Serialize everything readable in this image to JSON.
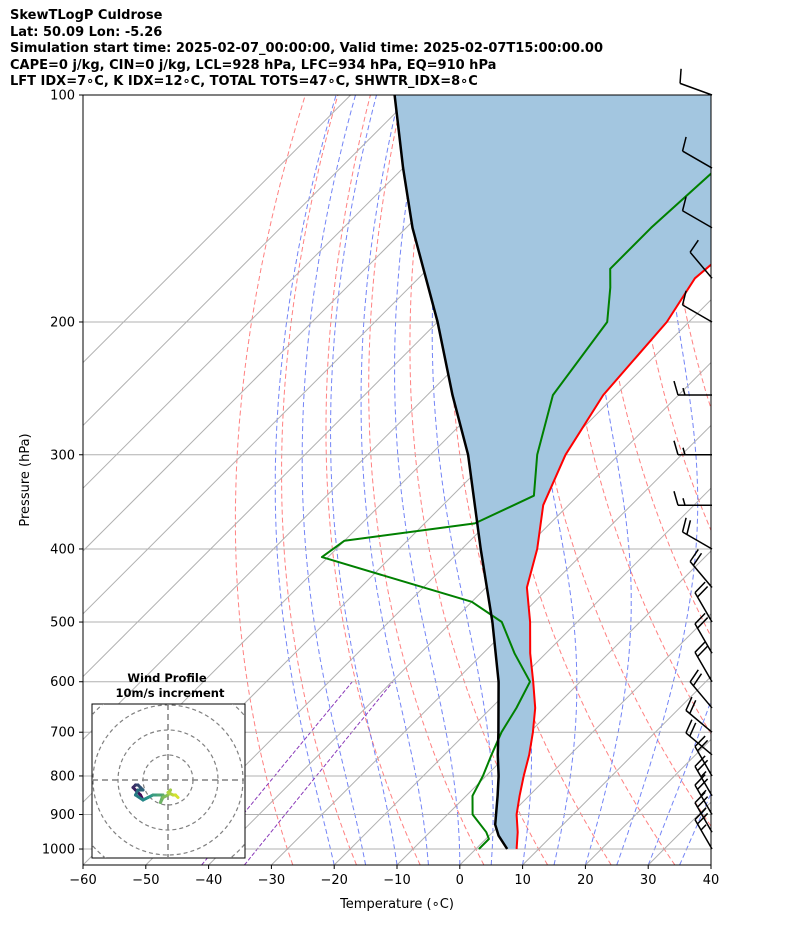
{
  "header": {
    "title": "SkewTLogP Culdrose",
    "location": "Lat: 50.09   Lon: -5.26",
    "times": "Simulation start time: 2025-02-07_00:00:00, Valid time: 2025-02-07T15:00:00.00",
    "params": "CAPE=0 j/kg, CIN=0 j/kg, LCL=928 hPa, LFC=934 hPa, EQ=910 hPa",
    "indices": "LFT IDX=7∘C, K IDX=12∘C, TOTAL TOTS=47∘C, SHWTR_IDX=8∘C"
  },
  "chart_data": {
    "type": "line",
    "xlabel": "Temperature (∘C)",
    "ylabel": "Pressure (hPa)",
    "xlim": [
      -60,
      40
    ],
    "ylim": [
      1050,
      100
    ],
    "y_scale": "log",
    "x_ticks": [
      -60,
      -50,
      -40,
      -30,
      -20,
      -10,
      0,
      10,
      20,
      30,
      40
    ],
    "x_tick_labels": [
      "−60",
      "−50",
      "−40",
      "−30",
      "−20",
      "−10",
      "0",
      "10",
      "20",
      "30",
      "40"
    ],
    "y_ticks": [
      100,
      200,
      300,
      400,
      500,
      600,
      700,
      800,
      900,
      1000
    ],
    "y_tick_labels": [
      "100",
      "200",
      "300",
      "400",
      "500",
      "600",
      "700",
      "800",
      "900",
      "1000"
    ],
    "skew": 45,
    "grid": true,
    "colors": {
      "temperature": "#ff0000",
      "dewpoint": "#008000",
      "parcel": "#000000",
      "cape_fill": "#a3c6e0",
      "dry_adiabats": "#ff6b6b",
      "moist_adiabats": "#5b6ef5",
      "mixing_ratio": "#8a3ab9",
      "hodograph_start": "#440154",
      "hodograph_end": "#d4e22e"
    },
    "series": [
      {
        "key": "temperature",
        "values": [
          {
            "p": 1000,
            "t": 6.5
          },
          {
            "p": 950,
            "t": 4.0
          },
          {
            "p": 900,
            "t": 1.0
          },
          {
            "p": 850,
            "t": -1.5
          },
          {
            "p": 800,
            "t": -4.0
          },
          {
            "p": 750,
            "t": -6.5
          },
          {
            "p": 700,
            "t": -9.5
          },
          {
            "p": 650,
            "t": -13.0
          },
          {
            "p": 600,
            "t": -17.5
          },
          {
            "p": 550,
            "t": -22.5
          },
          {
            "p": 500,
            "t": -27.5
          },
          {
            "p": 450,
            "t": -33.5
          },
          {
            "p": 400,
            "t": -38.0
          },
          {
            "p": 350,
            "t": -44.0
          },
          {
            "p": 300,
            "t": -48.5
          },
          {
            "p": 250,
            "t": -52.0
          },
          {
            "p": 200,
            "t": -53.5
          },
          {
            "p": 175,
            "t": -56.0
          },
          {
            "p": 150,
            "t": -54.5
          },
          {
            "p": 125,
            "t": -57.0
          },
          {
            "p": 110,
            "t": -56.0
          },
          {
            "p": 100,
            "t": -55.0
          }
        ]
      },
      {
        "key": "dewpoint",
        "values": [
          {
            "p": 1000,
            "t": 0.5
          },
          {
            "p": 970,
            "t": 0.5
          },
          {
            "p": 950,
            "t": -1.0
          },
          {
            "p": 900,
            "t": -6.0
          },
          {
            "p": 850,
            "t": -9.0
          },
          {
            "p": 800,
            "t": -10.5
          },
          {
            "p": 750,
            "t": -12.5
          },
          {
            "p": 700,
            "t": -14.5
          },
          {
            "p": 650,
            "t": -16.0
          },
          {
            "p": 600,
            "t": -18.0
          },
          {
            "p": 550,
            "t": -25.0
          },
          {
            "p": 500,
            "t": -32.0
          },
          {
            "p": 470,
            "t": -40.0
          },
          {
            "p": 440,
            "t": -55.0
          },
          {
            "p": 410,
            "t": -71.0
          },
          {
            "p": 390,
            "t": -70.0
          },
          {
            "p": 370,
            "t": -52.0
          },
          {
            "p": 340,
            "t": -47.0
          },
          {
            "p": 300,
            "t": -53.0
          },
          {
            "p": 250,
            "t": -60.0
          },
          {
            "p": 200,
            "t": -63.0
          },
          {
            "p": 180,
            "t": -68.0
          },
          {
            "p": 170,
            "t": -71.0
          },
          {
            "p": 150,
            "t": -71.0
          },
          {
            "p": 125,
            "t": -70.0
          },
          {
            "p": 100,
            "t": -70.0
          }
        ]
      },
      {
        "key": "parcel",
        "values": [
          {
            "p": 1000,
            "t": 5.0
          },
          {
            "p": 960,
            "t": 1.5
          },
          {
            "p": 928,
            "t": -0.8
          },
          {
            "p": 850,
            "t": -5.0
          },
          {
            "p": 800,
            "t": -8.0
          },
          {
            "p": 750,
            "t": -11.5
          },
          {
            "p": 700,
            "t": -15.0
          },
          {
            "p": 600,
            "t": -23.0
          },
          {
            "p": 500,
            "t": -33.5
          },
          {
            "p": 400,
            "t": -47.0
          },
          {
            "p": 300,
            "t": -64.0
          },
          {
            "p": 250,
            "t": -76.0
          },
          {
            "p": 200,
            "t": -90.0
          },
          {
            "p": 150,
            "t": -109.0
          },
          {
            "p": 125,
            "t": -120.0
          },
          {
            "p": 100,
            "t": -133.0
          }
        ]
      }
    ],
    "wind_barbs": [
      {
        "p": 100,
        "speed_kt": 10,
        "dir": 290
      },
      {
        "p": 125,
        "speed_kt": 10,
        "dir": 300
      },
      {
        "p": 150,
        "speed_kt": 10,
        "dir": 300
      },
      {
        "p": 175,
        "speed_kt": 10,
        "dir": 320
      },
      {
        "p": 200,
        "speed_kt": 10,
        "dir": 300
      },
      {
        "p": 250,
        "speed_kt": 15,
        "dir": 270
      },
      {
        "p": 300,
        "speed_kt": 15,
        "dir": 270
      },
      {
        "p": 350,
        "speed_kt": 15,
        "dir": 270
      },
      {
        "p": 400,
        "speed_kt": 20,
        "dir": 300
      },
      {
        "p": 450,
        "speed_kt": 20,
        "dir": 320
      },
      {
        "p": 500,
        "speed_kt": 20,
        "dir": 330
      },
      {
        "p": 550,
        "speed_kt": 20,
        "dir": 330
      },
      {
        "p": 600,
        "speed_kt": 20,
        "dir": 330
      },
      {
        "p": 650,
        "speed_kt": 20,
        "dir": 320
      },
      {
        "p": 700,
        "speed_kt": 20,
        "dir": 310
      },
      {
        "p": 750,
        "speed_kt": 20,
        "dir": 310
      },
      {
        "p": 800,
        "speed_kt": 20,
        "dir": 330
      },
      {
        "p": 850,
        "speed_kt": 25,
        "dir": 330
      },
      {
        "p": 900,
        "speed_kt": 25,
        "dir": 330
      },
      {
        "p": 950,
        "speed_kt": 25,
        "dir": 330
      },
      {
        "p": 1000,
        "speed_kt": 25,
        "dir": 330
      }
    ],
    "hodograph": {
      "title": "Wind Profile",
      "subtitle": "10m/s increment",
      "ring_step_ms": 10,
      "rings": 4,
      "points": [
        {
          "u": -10,
          "v": -8
        },
        {
          "u": -11,
          "v": -6
        },
        {
          "u": -13,
          "v": -4
        },
        {
          "u": -14,
          "v": -3
        },
        {
          "u": -13,
          "v": -2
        },
        {
          "u": -12,
          "v": -2
        },
        {
          "u": -11,
          "v": -3
        },
        {
          "u": -10,
          "v": -4
        },
        {
          "u": -12,
          "v": -4
        },
        {
          "u": -13,
          "v": -6
        },
        {
          "u": -10,
          "v": -8
        },
        {
          "u": -8,
          "v": -7
        },
        {
          "u": -6,
          "v": -6
        },
        {
          "u": -4,
          "v": -6
        },
        {
          "u": -2,
          "v": -6
        },
        {
          "u": -3,
          "v": -9
        },
        {
          "u": -2,
          "v": -7
        },
        {
          "u": 0,
          "v": -6
        },
        {
          "u": 1,
          "v": -4
        },
        {
          "u": 0,
          "v": -5
        },
        {
          "u": 2,
          "v": -6
        },
        {
          "u": 3,
          "v": -6
        },
        {
          "u": 4,
          "v": -7
        }
      ]
    }
  }
}
